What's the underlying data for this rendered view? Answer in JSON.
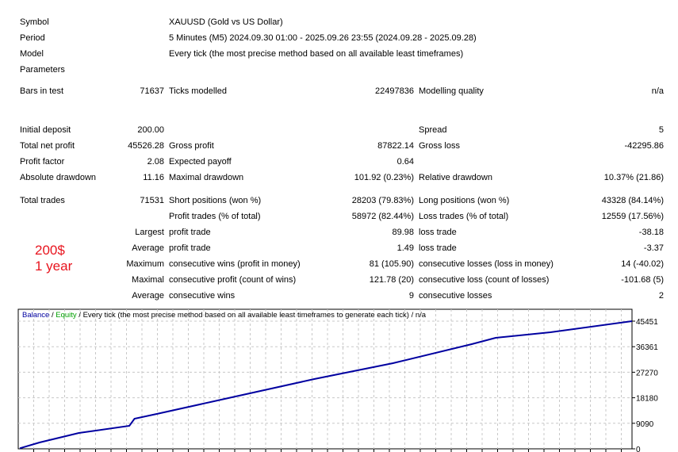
{
  "header": [
    {
      "label": "Symbol",
      "value": "XAUUSD (Gold vs US Dollar)"
    },
    {
      "label": "Period",
      "value": "5 Minutes (M5) 2024.09.30 01:00 - 2025.09.26 23:55 (2024.09.28 - 2025.09.28)"
    },
    {
      "label": "Model",
      "value": "Every tick (the most precise method based on all available least timeframes)"
    },
    {
      "label": "Parameters",
      "value": ""
    }
  ],
  "bars": {
    "label": "Bars in test",
    "value": "71637",
    "ticks_label": "Ticks modelled",
    "ticks_value": "22497836",
    "quality_label": "Modelling quality",
    "quality_value": "n/a"
  },
  "stats": [
    {
      "l1": "Initial deposit",
      "v1": "200.00",
      "l2": "",
      "v2": "",
      "l3": "Spread",
      "v3": "5"
    },
    {
      "l1": "Total net profit",
      "v1": "45526.28",
      "l2": "Gross profit",
      "v2": "87822.14",
      "l3": "Gross loss",
      "v3": "-42295.86"
    },
    {
      "l1": "Profit factor",
      "v1": "2.08",
      "l2": "Expected payoff",
      "v2": "0.64",
      "l3": "",
      "v3": ""
    },
    {
      "l1": "Absolute drawdown",
      "v1": "11.16",
      "l2": "Maximal drawdown",
      "v2": "101.92 (0.23%)",
      "l3": "Relative drawdown",
      "v3": "10.37% (21.86)"
    }
  ],
  "trades": [
    {
      "l1": "Total trades",
      "v1": "71531",
      "l2": "Short positions (won %)",
      "v2": "28203 (79.83%)",
      "l3": "Long positions (won %)",
      "v3": "43328 (84.14%)"
    },
    {
      "l1": "",
      "v1": "",
      "l2": "Profit trades (% of total)",
      "v2": "58972 (82.44%)",
      "l3": "Loss trades (% of total)",
      "v3": "12559 (17.56%)"
    },
    {
      "l1": "",
      "v1": "Largest",
      "l2": "profit trade",
      "v2": "89.98",
      "l3": "loss trade",
      "v3": "-38.18"
    },
    {
      "l1": "",
      "v1": "Average",
      "l2": "profit trade",
      "v2": "1.49",
      "l3": "loss trade",
      "v3": "-3.37"
    },
    {
      "l1": "",
      "v1": "Maximum",
      "l2": "consecutive wins (profit in money)",
      "v2": "81 (105.90)",
      "l3": "consecutive losses (loss in money)",
      "v3": "14 (-40.02)"
    },
    {
      "l1": "",
      "v1": "Maximal",
      "l2": "consecutive profit (count of wins)",
      "v2": "121.78 (20)",
      "l3": "consecutive loss (count of losses)",
      "v3": "-101.68 (5)"
    },
    {
      "l1": "",
      "v1": "Average",
      "l2": "consecutive wins",
      "v2": "9",
      "l3": "consecutive losses",
      "v3": "2"
    }
  ],
  "note": {
    "line1": "200$",
    "line2": "1 year",
    "color": "#e8141e"
  },
  "chart_data": {
    "type": "line",
    "legend": {
      "balance": "Balance",
      "sep1": " / ",
      "equity": "Equity",
      "rest": " / Every tick (the most precise method based on all available least timeframes to generate each tick) / n/a"
    },
    "colors": {
      "balance": "#0000a0",
      "equity": "#00a000",
      "grid": "#c8c8c8"
    },
    "y_ticks": [
      0,
      9090,
      18180,
      27270,
      36361,
      45451
    ],
    "ylim": [
      0,
      45451
    ],
    "xlim": [
      0,
      71531
    ],
    "grid": true,
    "series": [
      {
        "name": "Balance",
        "x": [
          0,
          2300,
          6900,
          12800,
          13400,
          16000,
          25200,
          34400,
          43600,
          52800,
          55600,
          62000,
          71531
        ],
        "values": [
          200,
          2260,
          5650,
          8190,
          10730,
          12420,
          18630,
          24840,
          30490,
          37260,
          39520,
          41500,
          45451
        ]
      }
    ]
  }
}
